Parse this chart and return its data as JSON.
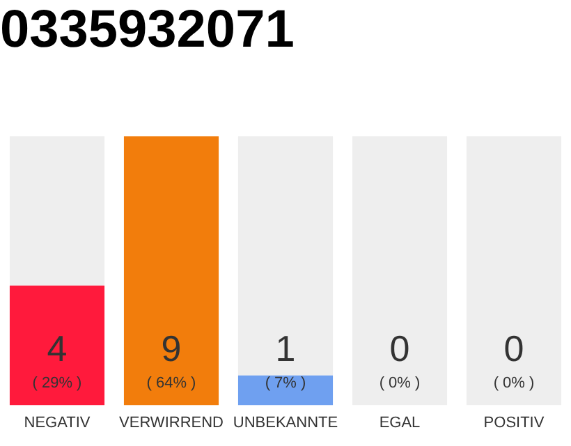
{
  "chart_data": {
    "type": "bar",
    "title": "0335932071",
    "stacked": true,
    "categories": [
      "NEGATIV",
      "VERWIRREND",
      "UNBEKANNTE",
      "EGAL",
      "POSITIV"
    ],
    "series": [
      {
        "colors": [
          "#ff1a3c",
          "#f27d0c",
          "#6fa0f0",
          "#6fa0f0",
          "#6fa0f0"
        ],
        "values": [
          4,
          9,
          1,
          0,
          0
        ],
        "value_labels": [
          "4",
          "9",
          "1",
          null,
          null
        ]
      },
      {
        "color": "#eeeeee",
        "values": [
          5,
          0,
          8,
          9,
          9
        ]
      }
    ],
    "annotations": [
      {
        "text": "( 29% )",
        "x": "NEGATIV",
        "y": 0
      },
      {
        "text": "( 64% )",
        "x": "VERWIRREND",
        "y": 0
      },
      {
        "text": "( 7% )",
        "x": "UNBEKANNTE",
        "y": 0
      },
      {
        "text": "0\n( 0% )",
        "x": "EGAL",
        "y": 0
      },
      {
        "text": "0\n( 0% )",
        "x": "POSITIV",
        "y": 0
      }
    ],
    "grid": false,
    "legend": false
  }
}
